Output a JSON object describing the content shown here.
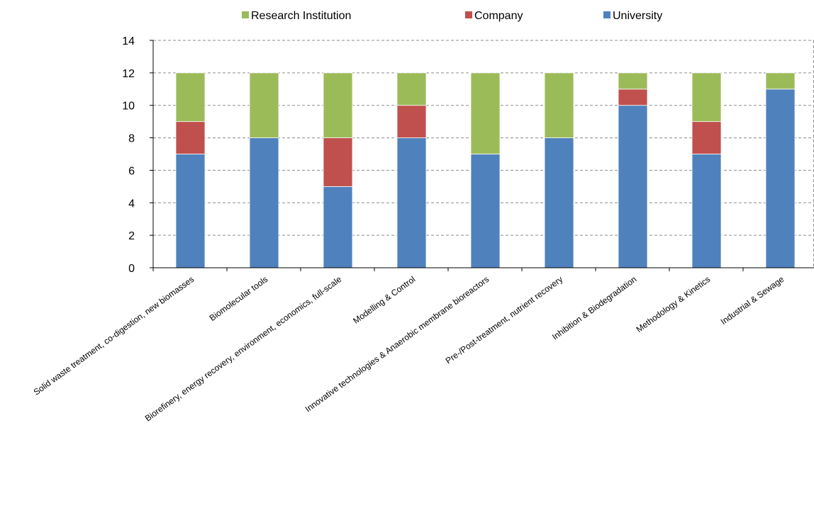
{
  "chart_data": {
    "type": "bar",
    "stacked": true,
    "title": "",
    "xlabel": "",
    "ylabel": "",
    "ylim": [
      0,
      14
    ],
    "yticks": [
      "0",
      "2",
      "4",
      "6",
      "8",
      "10",
      "12",
      "14"
    ],
    "grid": true,
    "legend_position": "top",
    "categories": [
      "Solid waste treatment, co-digestion, new biomasses",
      "Biomolecular tools",
      "Biorefinery, energy recovery, environment, economics, full-scale",
      "Modelling & Control",
      "Innovative technologies & Anaerobic membrane bioreactors",
      "Pre-/Post-treatment, nutrient recovery",
      "Inhibition & Biodegradation",
      "Methodology & Kinetics",
      "Industrial & Sewage"
    ],
    "series": [
      {
        "name": "University",
        "color": "#4f81bd",
        "values": [
          7,
          8,
          5,
          8,
          7,
          8,
          10,
          7,
          11
        ]
      },
      {
        "name": "Company",
        "color": "#c0504d",
        "values": [
          2,
          0,
          3,
          2,
          0,
          0,
          1,
          2,
          0
        ]
      },
      {
        "name": "Research Institution",
        "color": "#9bbb59",
        "values": [
          3,
          4,
          4,
          2,
          5,
          4,
          1,
          3,
          1
        ]
      }
    ],
    "legend_order": [
      "Research Institution",
      "Company",
      "University"
    ]
  }
}
